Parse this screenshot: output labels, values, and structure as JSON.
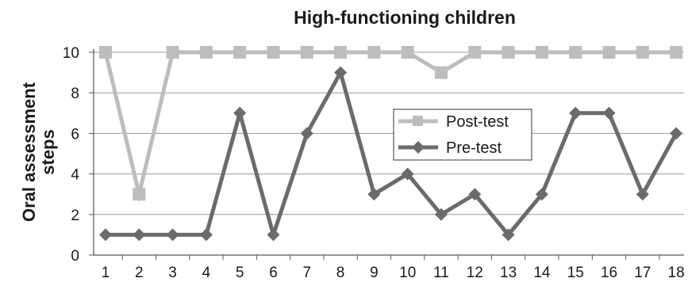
{
  "chart_data": {
    "type": "line",
    "title": "High-functioning children",
    "xlabel": "",
    "ylabel_lines": [
      "Oral assessment",
      "steps"
    ],
    "x": [
      1,
      2,
      3,
      4,
      5,
      6,
      7,
      8,
      9,
      10,
      11,
      12,
      13,
      14,
      15,
      16,
      17,
      18
    ],
    "x_tick_labels": [
      "1",
      "2",
      "3",
      "4",
      "5",
      "6",
      "7",
      "8",
      "9",
      "10",
      "11",
      "12",
      "13",
      "14",
      "15",
      "16",
      "17",
      "18"
    ],
    "ylim": [
      0,
      10
    ],
    "y_ticks": [
      0,
      2,
      4,
      6,
      8,
      10
    ],
    "y_tick_labels": [
      "0",
      "2",
      "4",
      "6",
      "8",
      "10"
    ],
    "grid": true,
    "legend_position": "center-right",
    "series": [
      {
        "name": "Post-test",
        "marker": "square",
        "color": "#bdbdbd",
        "values": [
          10,
          3,
          10,
          10,
          10,
          10,
          10,
          10,
          10,
          10,
          9,
          10,
          10,
          10,
          10,
          10,
          10,
          10
        ]
      },
      {
        "name": "Pre-test",
        "marker": "diamond",
        "color": "#6b6b6b",
        "values": [
          1,
          1,
          1,
          1,
          7,
          1,
          6,
          9,
          3,
          4,
          2,
          3,
          1,
          3,
          7,
          7,
          3,
          6
        ]
      }
    ]
  }
}
